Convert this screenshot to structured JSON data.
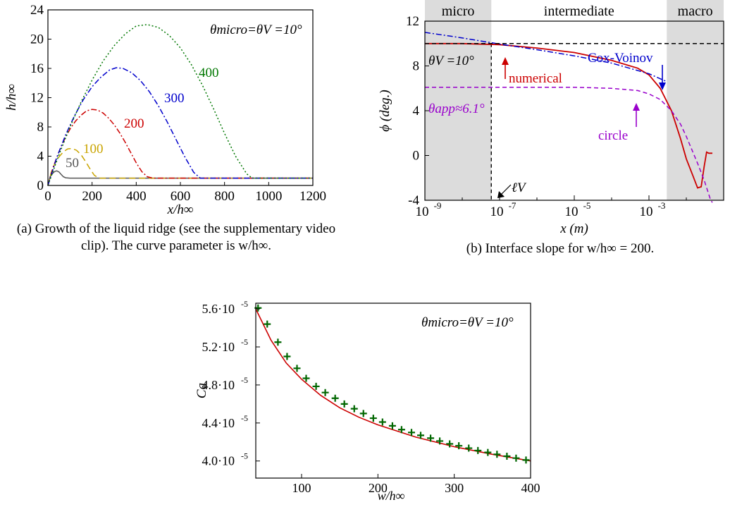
{
  "captions": {
    "a": "(a) Growth of the liquid ridge (see the supplementary video clip). The curve parameter is w/h∞.",
    "b": "(b) Interface slope for w/h∞ = 200."
  },
  "chart_data": [
    {
      "id": "a",
      "type": "line",
      "xlabel": "x/h∞",
      "ylabel": "h/h∞",
      "xlim": [
        0,
        1200
      ],
      "ylim": [
        0,
        24
      ],
      "xticks": [
        "0",
        "200",
        "400",
        "600",
        "800",
        "1000",
        "1200"
      ],
      "yticks": [
        "0",
        "4",
        "8",
        "12",
        "16",
        "20",
        "24"
      ],
      "annotation": "θmicro=θV =10°",
      "series": [
        {
          "name": "50",
          "color": "#555555",
          "dash": "solid",
          "x": [
            0,
            10,
            20,
            30,
            40,
            50,
            60,
            70,
            80,
            100,
            1200
          ],
          "y": [
            0,
            1.2,
            1.6,
            1.9,
            2.0,
            1.85,
            1.5,
            1.2,
            1.05,
            1.0,
            1.0
          ]
        },
        {
          "name": "100",
          "color": "#c9a400",
          "dash": "long",
          "x": [
            0,
            15,
            30,
            50,
            70,
            90,
            110,
            130,
            150,
            170,
            190,
            210,
            230,
            1200
          ],
          "y": [
            0,
            1.8,
            2.9,
            3.9,
            4.6,
            5.0,
            5.05,
            4.8,
            4.2,
            3.3,
            2.3,
            1.4,
            1.0,
            1.0
          ]
        },
        {
          "name": "200",
          "color": "#cc0000",
          "dash": "dashdot",
          "x": [
            0,
            25,
            50,
            75,
            100,
            125,
            150,
            175,
            200,
            225,
            250,
            275,
            300,
            325,
            350,
            375,
            400,
            425,
            450,
            475,
            1200
          ],
          "y": [
            0,
            2.6,
            4.6,
            6.3,
            7.7,
            8.8,
            9.6,
            10.2,
            10.4,
            10.3,
            9.9,
            9.2,
            8.3,
            7.2,
            5.9,
            4.5,
            3.1,
            1.9,
            1.2,
            1.0,
            1.0
          ]
        },
        {
          "name": "300",
          "color": "#0000cc",
          "dash": "dashdot",
          "x": [
            0,
            40,
            80,
            120,
            160,
            200,
            240,
            280,
            310,
            340,
            380,
            420,
            460,
            500,
            540,
            580,
            620,
            660,
            690,
            1200
          ],
          "y": [
            0,
            3.8,
            6.9,
            9.5,
            11.7,
            13.5,
            14.8,
            15.8,
            16.1,
            16.0,
            15.4,
            14.3,
            12.8,
            10.9,
            8.7,
            6.3,
            3.9,
            1.8,
            1.0,
            1.0
          ]
        },
        {
          "name": "400",
          "color": "#007700",
          "dash": "dotted",
          "x": [
            0,
            50,
            100,
            150,
            200,
            250,
            300,
            350,
            400,
            450,
            500,
            550,
            600,
            650,
            700,
            750,
            800,
            850,
            900,
            925,
            1200
          ],
          "y": [
            0,
            4.2,
            8.0,
            11.4,
            14.4,
            17.0,
            19.1,
            20.7,
            21.8,
            22.0,
            21.6,
            20.5,
            18.8,
            16.5,
            13.7,
            10.5,
            7.1,
            4.0,
            1.6,
            1.0,
            1.0
          ]
        }
      ]
    },
    {
      "id": "b",
      "type": "line",
      "xlabel": "x (m)",
      "ylabel": "ϕ (deg.)",
      "xscale": "log",
      "xlim": [
        1e-09,
        0.1
      ],
      "ylim": [
        -4,
        12
      ],
      "xticks": [
        {
          "v": 1e-09,
          "label": "10",
          "exp": "-9"
        },
        {
          "v": 1e-07,
          "label": "10",
          "exp": "-7"
        },
        {
          "v": 1e-05,
          "label": "10",
          "exp": "-5"
        },
        {
          "v": 0.001,
          "label": "10",
          "exp": "-3"
        }
      ],
      "yticks": [
        "-4",
        "0",
        "4",
        "8",
        "12"
      ],
      "regions": [
        {
          "label": "micro",
          "from": 1e-09,
          "to": 6e-08,
          "shaded": true
        },
        {
          "label": "intermediate",
          "from": 6e-08,
          "to": 0.003,
          "shaded": false
        },
        {
          "label": "macro",
          "from": 0.003,
          "to": 0.1,
          "shaded": true
        }
      ],
      "reference_lines": {
        "theta_v": 10,
        "theta_app": 6.1,
        "l_v": 6e-08
      },
      "annotations": {
        "theta_v": "θV =10°",
        "numerical": "numerical",
        "cox_voinov": "Cox-Voinov",
        "theta_app": "θapp≈6.1°",
        "circle": "circle",
        "l_v": "ℓV"
      },
      "series": [
        {
          "name": "numerical",
          "color": "#cc0000",
          "dash": "solid",
          "x": [
            1e-09,
            1e-08,
            1e-07,
            1e-06,
            1e-05,
            0.0001,
            0.0005,
            0.001,
            0.002,
            0.004,
            0.007,
            0.01,
            0.015,
            0.02,
            0.025,
            0.03,
            0.035,
            0.04,
            0.05
          ],
          "y": [
            10.0,
            10.0,
            9.9,
            9.6,
            9.2,
            8.5,
            7.8,
            7.2,
            6.0,
            4.0,
            1.5,
            -0.3,
            -1.8,
            -2.9,
            -2.8,
            -1.0,
            0.3,
            0.2,
            0.2
          ]
        },
        {
          "name": "Cox-Voinov",
          "color": "#0000cc",
          "dash": "dashdot",
          "x": [
            1e-09,
            1e-08,
            1e-07,
            1e-06,
            1e-05,
            0.0001,
            0.001,
            0.003
          ],
          "y": [
            11.0,
            10.5,
            9.95,
            9.45,
            8.9,
            8.25,
            7.3,
            6.6
          ]
        },
        {
          "name": "circle",
          "color": "#9900cc",
          "dash": "dashed",
          "x": [
            1e-09,
            1e-06,
            1e-05,
            0.0001,
            0.0005,
            0.001,
            0.002,
            0.004,
            0.007,
            0.01,
            0.015,
            0.02,
            0.03,
            0.045,
            0.05
          ],
          "y": [
            6.1,
            6.1,
            6.1,
            6.0,
            5.8,
            5.5,
            5.0,
            4.0,
            2.8,
            1.7,
            0.3,
            -0.7,
            -2.2,
            -4.0,
            -4.2
          ]
        },
        {
          "name": "theta_v_line",
          "color": "#000000",
          "dash": "dashed",
          "x": [
            1e-09,
            0.1
          ],
          "y": [
            10,
            10
          ]
        }
      ]
    },
    {
      "id": "c",
      "type": "scatter",
      "xlabel": "w/h∞",
      "ylabel": "Ca",
      "xlim": [
        40,
        400
      ],
      "ylim": [
        3.82e-05,
        5.66e-05
      ],
      "xticks": [
        "100",
        "200",
        "300",
        "400"
      ],
      "yticks": [
        {
          "v": 4e-05,
          "m": "4.0",
          "exp": "-5"
        },
        {
          "v": 4.4e-05,
          "m": "4.4",
          "exp": "-5"
        },
        {
          "v": 4.8e-05,
          "m": "4.8",
          "exp": "-5"
        },
        {
          "v": 5.2e-05,
          "m": "5.2",
          "exp": "-5"
        },
        {
          "v": 5.6e-05,
          "m": "5.6",
          "exp": "-5"
        }
      ],
      "annotation": "θmicro=θV =10°",
      "series": [
        {
          "name": "points",
          "color": "#006600",
          "marker": "plus",
          "x": [
            43,
            55,
            69,
            81,
            94,
            106,
            119,
            131,
            144,
            156,
            169,
            181,
            194,
            206,
            219,
            231,
            244,
            256,
            269,
            281,
            294,
            306,
            319,
            331,
            344,
            356,
            369,
            381,
            394
          ],
          "y": [
            5.61e-05,
            5.44e-05,
            5.25e-05,
            5.1e-05,
            4.975e-05,
            4.87e-05,
            4.785e-05,
            4.72e-05,
            4.66e-05,
            4.6e-05,
            4.55e-05,
            4.5e-05,
            4.45e-05,
            4.41e-05,
            4.37e-05,
            4.33e-05,
            4.3e-05,
            4.27e-05,
            4.24e-05,
            4.21e-05,
            4.18e-05,
            4.16e-05,
            4.135e-05,
            4.11e-05,
            4.09e-05,
            4.07e-05,
            4.05e-05,
            4.03e-05,
            4.01e-05
          ]
        },
        {
          "name": "fit",
          "color": "#cc0000",
          "dash": "solid",
          "x": [
            40,
            60,
            80,
            100,
            125,
            150,
            175,
            200,
            250,
            300,
            350,
            400
          ],
          "y": [
            5.6e-05,
            5.27e-05,
            5.03e-05,
            4.86e-05,
            4.69e-05,
            4.56e-05,
            4.46e-05,
            4.38e-05,
            4.25e-05,
            4.15e-05,
            4.07e-05,
            4e-05
          ]
        }
      ]
    }
  ]
}
